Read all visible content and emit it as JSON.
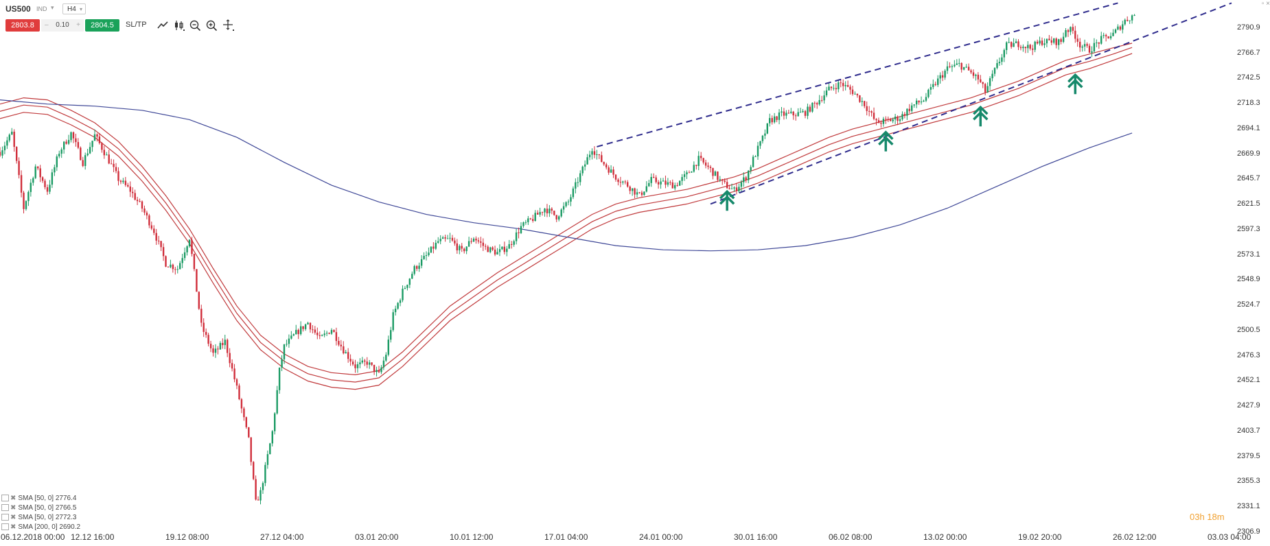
{
  "toolbar": {
    "symbol": "US500",
    "symbol_type": "IND",
    "timeframe": "H4",
    "sell_price": "2803.8",
    "quantity": "0.10",
    "buy_price": "2804.5",
    "sltp_label": "SL/TP",
    "icons": [
      "line-chart-icon",
      "candle-type-icon",
      "zoom-out-icon",
      "zoom-in-icon",
      "crosshair-icon"
    ]
  },
  "colors": {
    "bull": "#1a9a63",
    "bear": "#d02d3a",
    "sma_red": "#c0393b",
    "sma200": "#3d4696",
    "trendline": "#2e2b8c",
    "arrow": "#16896b",
    "sell_bg": "#e03c3c",
    "buy_bg": "#1aa25a",
    "timer": "#f0a030"
  },
  "legend": [
    {
      "text": "SMA [50, 0] 2776.4"
    },
    {
      "text": "SMA [50, 0] 2766.5"
    },
    {
      "text": "SMA [50, 0] 2772.3"
    },
    {
      "text": "SMA [200, 0] 2690.2"
    }
  ],
  "timer": {
    "h": "03h",
    "m": "18m"
  },
  "chart_data": {
    "type": "candlestick",
    "symbol": "US500",
    "timeframe": "H4",
    "ylim": [
      2306.9,
      2815
    ],
    "y_ticks": [
      "2790.9",
      "2766.7",
      "2742.5",
      "2718.3",
      "2694.1",
      "2669.9",
      "2645.7",
      "2621.5",
      "2597.3",
      "2573.1",
      "2548.9",
      "2524.7",
      "2500.5",
      "2476.3",
      "2452.1",
      "2427.9",
      "2403.7",
      "2379.5",
      "2355.3",
      "2331.1",
      "2306.9"
    ],
    "x_ticks": [
      "06.12.2018 00:00",
      "12.12 16:00",
      "19.12 08:00",
      "27.12 04:00",
      "03.01 20:00",
      "10.01 12:00",
      "17.01 04:00",
      "24.01 00:00",
      "30.01 16:00",
      "06.02 08:00",
      "13.02 00:00",
      "19.02 20:00",
      "26.02 12:00",
      "03.03 04:00"
    ],
    "x_tick_index": [
      0,
      40,
      80,
      120,
      160,
      200,
      240,
      280,
      320,
      360,
      400,
      440,
      480,
      520
    ],
    "price_path": [
      [
        0,
        2672
      ],
      [
        5,
        2690
      ],
      [
        10,
        2618
      ],
      [
        15,
        2658
      ],
      [
        20,
        2635
      ],
      [
        25,
        2672
      ],
      [
        30,
        2690
      ],
      [
        35,
        2662
      ],
      [
        40,
        2688
      ],
      [
        45,
        2668
      ],
      [
        50,
        2646
      ],
      [
        55,
        2635
      ],
      [
        60,
        2618
      ],
      [
        65,
        2596
      ],
      [
        70,
        2565
      ],
      [
        75,
        2560
      ],
      [
        80,
        2590
      ],
      [
        85,
        2505
      ],
      [
        90,
        2478
      ],
      [
        95,
        2490
      ],
      [
        100,
        2445
      ],
      [
        105,
        2395
      ],
      [
        108,
        2335
      ],
      [
        110,
        2345
      ],
      [
        115,
        2403
      ],
      [
        118,
        2462
      ],
      [
        120,
        2485
      ],
      [
        125,
        2498
      ],
      [
        130,
        2508
      ],
      [
        135,
        2492
      ],
      [
        140,
        2502
      ],
      [
        145,
        2482
      ],
      [
        150,
        2466
      ],
      [
        155,
        2470
      ],
      [
        160,
        2458
      ],
      [
        163,
        2478
      ],
      [
        166,
        2515
      ],
      [
        170,
        2538
      ],
      [
        175,
        2560
      ],
      [
        180,
        2572
      ],
      [
        185,
        2586
      ],
      [
        190,
        2588
      ],
      [
        195,
        2576
      ],
      [
        200,
        2590
      ],
      [
        205,
        2580
      ],
      [
        210,
        2575
      ],
      [
        215,
        2582
      ],
      [
        220,
        2600
      ],
      [
        225,
        2608
      ],
      [
        230,
        2618
      ],
      [
        235,
        2610
      ],
      [
        240,
        2624
      ],
      [
        245,
        2650
      ],
      [
        250,
        2676
      ],
      [
        253,
        2666
      ],
      [
        256,
        2658
      ],
      [
        260,
        2648
      ],
      [
        265,
        2640
      ],
      [
        270,
        2630
      ],
      [
        275,
        2645
      ],
      [
        280,
        2642
      ],
      [
        285,
        2640
      ],
      [
        290,
        2650
      ],
      [
        295,
        2665
      ],
      [
        300,
        2655
      ],
      [
        305,
        2642
      ],
      [
        310,
        2635
      ],
      [
        315,
        2648
      ],
      [
        318,
        2665
      ],
      [
        322,
        2685
      ],
      [
        325,
        2702
      ],
      [
        330,
        2708
      ],
      [
        335,
        2708
      ],
      [
        340,
        2710
      ],
      [
        345,
        2720
      ],
      [
        350,
        2732
      ],
      [
        355,
        2738
      ],
      [
        360,
        2730
      ],
      [
        365,
        2718
      ],
      [
        370,
        2700
      ],
      [
        375,
        2702
      ],
      [
        380,
        2705
      ],
      [
        385,
        2716
      ],
      [
        390,
        2722
      ],
      [
        395,
        2738
      ],
      [
        400,
        2752
      ],
      [
        405,
        2756
      ],
      [
        410,
        2748
      ],
      [
        413,
        2742
      ],
      [
        416,
        2730
      ],
      [
        420,
        2750
      ],
      [
        425,
        2774
      ],
      [
        430,
        2776
      ],
      [
        435,
        2772
      ],
      [
        440,
        2778
      ],
      [
        445,
        2778
      ],
      [
        448,
        2778
      ],
      [
        450,
        2790
      ],
      [
        453,
        2788
      ],
      [
        456,
        2775
      ],
      [
        460,
        2770
      ],
      [
        465,
        2780
      ],
      [
        470,
        2785
      ],
      [
        475,
        2798
      ],
      [
        479,
        2804
      ]
    ],
    "moving_averages": [
      {
        "label": "SMA [50, 0] 2776.4",
        "color": "#c0393b",
        "points": [
          [
            0,
            2718
          ],
          [
            10,
            2724
          ],
          [
            20,
            2722
          ],
          [
            30,
            2712
          ],
          [
            40,
            2700
          ],
          [
            50,
            2682
          ],
          [
            60,
            2658
          ],
          [
            70,
            2630
          ],
          [
            80,
            2598
          ],
          [
            90,
            2560
          ],
          [
            100,
            2524
          ],
          [
            110,
            2496
          ],
          [
            120,
            2478
          ],
          [
            130,
            2466
          ],
          [
            140,
            2460
          ],
          [
            150,
            2458
          ],
          [
            160,
            2462
          ],
          [
            170,
            2480
          ],
          [
            180,
            2502
          ],
          [
            190,
            2524
          ],
          [
            200,
            2540
          ],
          [
            210,
            2556
          ],
          [
            220,
            2570
          ],
          [
            230,
            2584
          ],
          [
            240,
            2598
          ],
          [
            250,
            2612
          ],
          [
            260,
            2622
          ],
          [
            270,
            2628
          ],
          [
            280,
            2632
          ],
          [
            290,
            2636
          ],
          [
            300,
            2642
          ],
          [
            310,
            2648
          ],
          [
            320,
            2656
          ],
          [
            330,
            2666
          ],
          [
            340,
            2676
          ],
          [
            350,
            2686
          ],
          [
            360,
            2694
          ],
          [
            370,
            2700
          ],
          [
            380,
            2706
          ],
          [
            390,
            2712
          ],
          [
            400,
            2718
          ],
          [
            410,
            2724
          ],
          [
            420,
            2732
          ],
          [
            430,
            2740
          ],
          [
            440,
            2750
          ],
          [
            450,
            2760
          ],
          [
            460,
            2766
          ],
          [
            470,
            2772
          ],
          [
            478,
            2776.4
          ]
        ]
      },
      {
        "label": "SMA [50, 0] 2766.5",
        "color": "#c0393b",
        "points": [
          [
            0,
            2704
          ],
          [
            10,
            2710
          ],
          [
            20,
            2708
          ],
          [
            30,
            2698
          ],
          [
            40,
            2686
          ],
          [
            50,
            2668
          ],
          [
            60,
            2644
          ],
          [
            70,
            2616
          ],
          [
            80,
            2584
          ],
          [
            90,
            2546
          ],
          [
            100,
            2510
          ],
          [
            110,
            2482
          ],
          [
            120,
            2464
          ],
          [
            130,
            2452
          ],
          [
            140,
            2446
          ],
          [
            150,
            2444
          ],
          [
            160,
            2448
          ],
          [
            170,
            2466
          ],
          [
            180,
            2488
          ],
          [
            190,
            2510
          ],
          [
            200,
            2526
          ],
          [
            210,
            2542
          ],
          [
            220,
            2556
          ],
          [
            230,
            2570
          ],
          [
            240,
            2584
          ],
          [
            250,
            2598
          ],
          [
            260,
            2608
          ],
          [
            270,
            2614
          ],
          [
            280,
            2618
          ],
          [
            290,
            2622
          ],
          [
            300,
            2628
          ],
          [
            310,
            2634
          ],
          [
            320,
            2642
          ],
          [
            330,
            2652
          ],
          [
            340,
            2662
          ],
          [
            350,
            2672
          ],
          [
            360,
            2680
          ],
          [
            370,
            2686
          ],
          [
            380,
            2692
          ],
          [
            390,
            2698
          ],
          [
            400,
            2704
          ],
          [
            410,
            2710
          ],
          [
            420,
            2718
          ],
          [
            430,
            2726
          ],
          [
            440,
            2736
          ],
          [
            450,
            2746
          ],
          [
            460,
            2752
          ],
          [
            470,
            2760
          ],
          [
            478,
            2766.5
          ]
        ]
      },
      {
        "label": "SMA [50, 0] 2772.3",
        "color": "#c0393b",
        "points": [
          [
            0,
            2711
          ],
          [
            10,
            2717
          ],
          [
            20,
            2715
          ],
          [
            30,
            2705
          ],
          [
            40,
            2693
          ],
          [
            50,
            2675
          ],
          [
            60,
            2651
          ],
          [
            70,
            2623
          ],
          [
            80,
            2591
          ],
          [
            90,
            2553
          ],
          [
            100,
            2517
          ],
          [
            110,
            2489
          ],
          [
            120,
            2471
          ],
          [
            130,
            2459
          ],
          [
            140,
            2453
          ],
          [
            150,
            2451
          ],
          [
            160,
            2455
          ],
          [
            170,
            2473
          ],
          [
            180,
            2495
          ],
          [
            190,
            2517
          ],
          [
            200,
            2533
          ],
          [
            210,
            2549
          ],
          [
            220,
            2563
          ],
          [
            230,
            2577
          ],
          [
            240,
            2591
          ],
          [
            250,
            2605
          ],
          [
            260,
            2615
          ],
          [
            270,
            2621
          ],
          [
            280,
            2625
          ],
          [
            290,
            2629
          ],
          [
            300,
            2635
          ],
          [
            310,
            2641
          ],
          [
            320,
            2649
          ],
          [
            330,
            2659
          ],
          [
            340,
            2669
          ],
          [
            350,
            2679
          ],
          [
            360,
            2687
          ],
          [
            370,
            2693
          ],
          [
            380,
            2699
          ],
          [
            390,
            2705
          ],
          [
            400,
            2711
          ],
          [
            410,
            2717
          ],
          [
            420,
            2725
          ],
          [
            430,
            2733
          ],
          [
            440,
            2743
          ],
          [
            450,
            2753
          ],
          [
            460,
            2759
          ],
          [
            470,
            2766
          ],
          [
            478,
            2772.3
          ]
        ]
      },
      {
        "label": "SMA [200, 0] 2690.2",
        "color": "#3d4696",
        "points": [
          [
            0,
            2722
          ],
          [
            20,
            2718
          ],
          [
            40,
            2716
          ],
          [
            60,
            2712
          ],
          [
            80,
            2703
          ],
          [
            100,
            2686
          ],
          [
            120,
            2662
          ],
          [
            140,
            2640
          ],
          [
            160,
            2624
          ],
          [
            180,
            2612
          ],
          [
            200,
            2604
          ],
          [
            220,
            2598
          ],
          [
            240,
            2590
          ],
          [
            260,
            2582
          ],
          [
            280,
            2578
          ],
          [
            300,
            2577
          ],
          [
            320,
            2578
          ],
          [
            340,
            2582
          ],
          [
            360,
            2590
          ],
          [
            380,
            2602
          ],
          [
            400,
            2618
          ],
          [
            420,
            2638
          ],
          [
            440,
            2658
          ],
          [
            460,
            2676
          ],
          [
            478,
            2690.2
          ]
        ]
      }
    ],
    "trendlines": [
      {
        "name": "upper",
        "points": [
          [
            252,
            2677
          ],
          [
            472,
            2815
          ]
        ]
      },
      {
        "name": "lower",
        "points": [
          [
            300,
            2622
          ],
          [
            520,
            2815
          ]
        ]
      }
    ],
    "arrows": [
      {
        "x": 307,
        "price": 2630
      },
      {
        "x": 374,
        "price": 2687
      },
      {
        "x": 414,
        "price": 2711
      },
      {
        "x": 454,
        "price": 2742
      }
    ],
    "x_max_index": 533,
    "grid": false,
    "legend": "bottom-left"
  }
}
